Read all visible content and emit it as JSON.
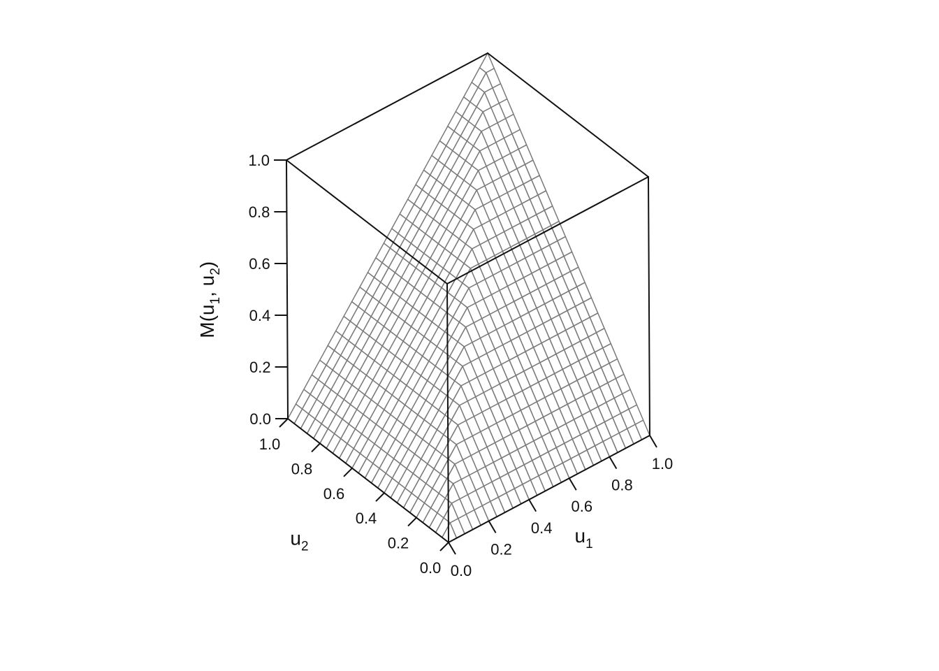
{
  "chart_data": {
    "type": "surface3d",
    "function": "min(u1, u2)",
    "x": {
      "label": "u",
      "label_sub": "1",
      "range": [
        0,
        1
      ],
      "ticks": [
        "0.0",
        "0.2",
        "0.4",
        "0.6",
        "0.8",
        "1.0"
      ]
    },
    "y": {
      "label": "u",
      "label_sub": "2",
      "range": [
        0,
        1
      ],
      "ticks": [
        "0.0",
        "0.2",
        "0.4",
        "0.6",
        "0.8",
        "1.0"
      ]
    },
    "z": {
      "label_main": "M(u",
      "label_sub1": "1",
      "label_mid": ", u",
      "label_sub2": "2",
      "label_end": ")",
      "range": [
        0,
        1
      ],
      "ticks": [
        "0.0",
        "0.2",
        "0.4",
        "0.6",
        "0.8",
        "1.0"
      ]
    },
    "grid_steps": 25,
    "box": true,
    "colors": {
      "mesh": "#7a7a7a",
      "box": "#111111",
      "hidden_edges": "#999999",
      "surface": "#ffffff"
    }
  }
}
